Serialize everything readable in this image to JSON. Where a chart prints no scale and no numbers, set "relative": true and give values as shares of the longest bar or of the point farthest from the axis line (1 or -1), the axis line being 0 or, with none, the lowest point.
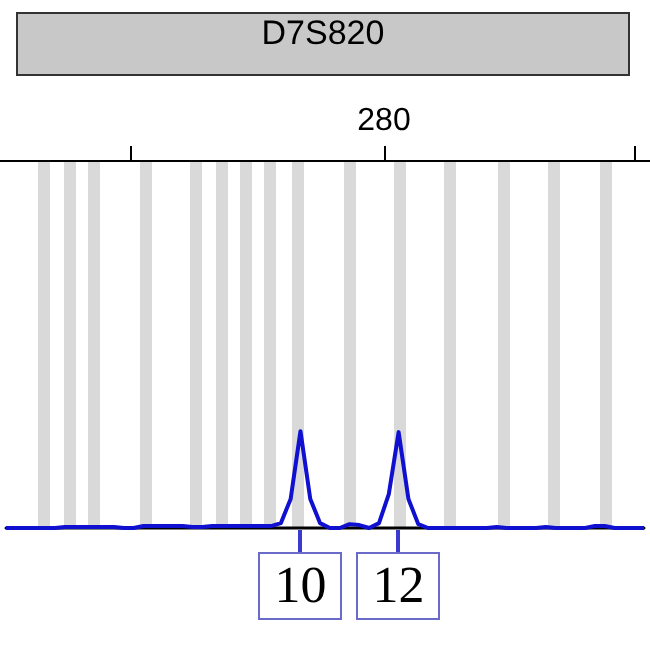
{
  "chart_data": {
    "type": "line",
    "title": "D7S820",
    "relative": true,
    "categories": [
      null,
      null,
      null,
      null,
      null,
      null,
      null,
      null,
      null,
      null,
      null,
      null,
      null,
      null,
      null,
      null,
      null,
      null,
      null,
      null,
      null,
      null,
      null,
      null,
      null,
      null,
      null,
      null,
      null,
      null,
      null,
      null,
      null,
      null,
      null,
      null,
      null,
      null,
      null,
      null,
      null,
      null,
      null,
      null,
      null,
      null,
      null,
      null,
      null,
      null,
      null,
      null,
      null,
      null,
      null,
      null,
      null,
      null,
      null,
      null,
      null,
      null,
      null,
      null,
      null,
      null
    ],
    "series": [
      {
        "color": "#1010d0",
        "values": [
          0,
          0,
          0,
          0,
          0,
          0,
          0.01,
          0.01,
          0.01,
          0.01,
          0.01,
          0.01,
          0,
          0,
          0.02,
          0.02,
          0.02,
          0.02,
          0.02,
          0.01,
          0.01,
          0.02,
          0.02,
          0.02,
          0.02,
          0.02,
          0.02,
          0.02,
          0.05,
          0.3,
          1,
          0.3,
          0.05,
          0,
          0,
          0.04,
          0.03,
          0,
          0.05,
          0.35,
          0.99,
          0.3,
          0.04,
          0,
          0,
          0,
          0,
          0,
          0,
          0,
          0.01,
          0,
          0,
          0,
          0,
          0.01,
          0,
          0,
          0,
          0,
          0.02,
          0.02,
          0,
          0,
          0,
          0
        ]
      }
    ],
    "annotations": [
      "280",
      "10",
      "12"
    ],
    "marker": "none",
    "line_style": "solid"
  }
}
